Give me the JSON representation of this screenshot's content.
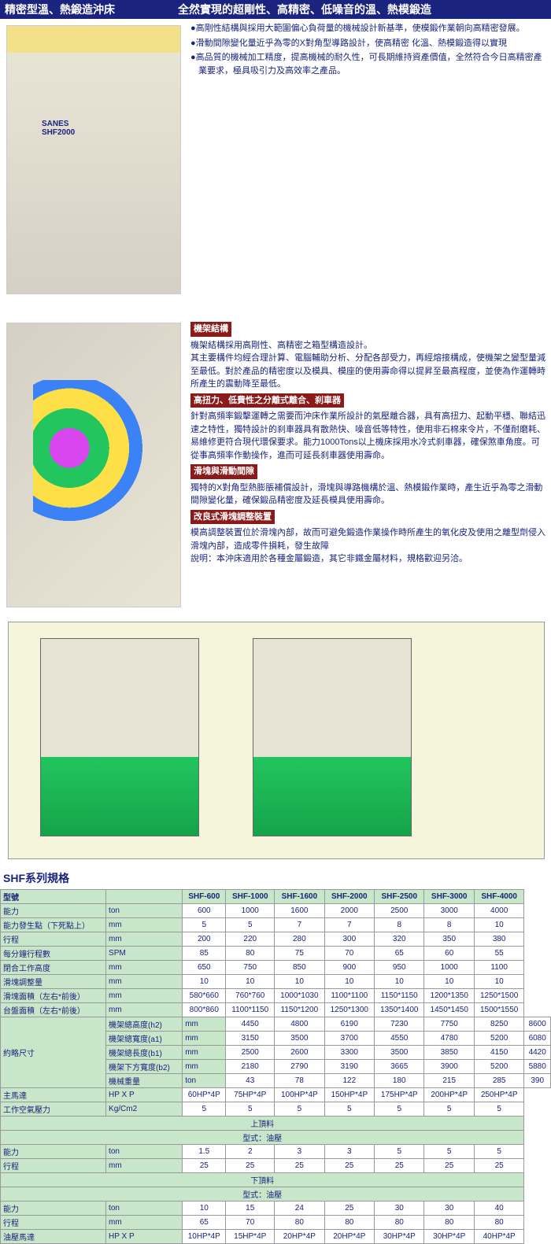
{
  "header": {
    "title1": "精密型溫、熱鍛造沖床",
    "title2": "全然實現的超剛性、高精密、低噪音的溫、熱模鍛造"
  },
  "bullets": [
    "●高剛性結構與採用大範圍偏心負荷量的機械設計新基準，使模鍛作業朝向高精密發展。",
    "●滑動間隙變化量近乎為零的X對角型導路設計，使高精密 化溫、熱模鍛造得以實現",
    "●高品質的機械加工精度，提高機械的耐久性，可長期維持資產價值，全然符合今日高精密產業要求，極具吸引力及高效率之產品。"
  ],
  "sections": [
    {
      "h": "機架結構",
      "t": [
        "機架結構採用高剛性、高精密之箱型構造設計。",
        "其主要構件均經合理計算、電腦輔助分析、分配各部受力，再經熔接構成，使機架之變型量減至最低。對於產品的精密度以及模具、模座的使用壽命得以提昇至最高程度，並使為作運轉時所產生的震動降至最低。"
      ]
    },
    {
      "h": "高扭力、低費性之分離式離合、刹車器",
      "t": [
        "針對高頻率鍛擊運轉之需要而沖床作業所設計的氣壓離合器，具有高扭力、起動平穩、聯結迅速之特性，獨特設計的刹車器具有散熱快、噪音低等特性，使用非石棉來令片，不僅耐磨耗、易維修更符合現代環保要求。能力1000Tons以上機床採用水冷式刹車器，確保煞車角度。可從事高頻率作動操作，進而可延長刹車器使用壽命。"
      ]
    },
    {
      "h": "滑塊與滑動間隙",
      "t": [
        "獨特的X對角型熱膨脹補償設計，滑塊與導路機構於溫、熱模鍛作業時，產生近乎為零之滑動間隙變化量，確保鍛品精密度及延長模具使用壽命。"
      ]
    },
    {
      "h": "改良式滑塊調整裝置",
      "t": [
        "模高調整裝置位於滑塊內部，故而可避免鍛造作業操作時所產生的氧化皮及使用之離型劑侵入滑塊內部，造成零件損耗，發生故障",
        "說明：本沖床適用於各種金屬鍛造，其它非鐵金屬材料，規格歡迎另洽。"
      ]
    }
  ],
  "specTitle": "SHF系列規格",
  "cols": [
    "SHF-600",
    "SHF-1000",
    "SHF-1600",
    "SHF-2000",
    "SHF-2500",
    "SHF-3000",
    "SHF-4000"
  ],
  "rows": [
    {
      "l": "型號",
      "u": "",
      "v": [
        "",
        "",
        "",
        "",
        "",
        "",
        ""
      ]
    },
    {
      "l": "能力",
      "u": "ton",
      "v": [
        "600",
        "1000",
        "1600",
        "2000",
        "2500",
        "3000",
        "4000"
      ]
    },
    {
      "l": "能力發生點（下死點上）",
      "u": "mm",
      "v": [
        "5",
        "5",
        "7",
        "7",
        "8",
        "8",
        "10"
      ]
    },
    {
      "l": "行程",
      "u": "mm",
      "v": [
        "200",
        "220",
        "280",
        "300",
        "320",
        "350",
        "380"
      ]
    },
    {
      "l": "每分鐘行程數",
      "u": "SPM",
      "v": [
        "85",
        "80",
        "75",
        "70",
        "65",
        "60",
        "55"
      ]
    },
    {
      "l": "閉合工作高度",
      "u": "mm",
      "v": [
        "650",
        "750",
        "850",
        "900",
        "950",
        "1000",
        "1100"
      ]
    },
    {
      "l": "滑塊調整量",
      "u": "mm",
      "v": [
        "10",
        "10",
        "10",
        "10",
        "10",
        "10",
        "10"
      ]
    },
    {
      "l": "滑塊面積（左右*前後）",
      "u": "mm",
      "v": [
        "580*660",
        "760*760",
        "1000*1030",
        "1100*1100",
        "1150*1150",
        "1200*1350",
        "1250*1500"
      ]
    },
    {
      "l": "台盤面積（左右*前後）",
      "u": "mm",
      "v": [
        "800*860",
        "1100*1150",
        "1150*1200",
        "1250*1300",
        "1350*1400",
        "1450*1450",
        "1500*1550"
      ]
    }
  ],
  "dims": [
    {
      "l": "機架總高度(h2)",
      "u": "mm",
      "v": [
        "4450",
        "4800",
        "6190",
        "7230",
        "7750",
        "8250",
        "8600"
      ]
    },
    {
      "l": "機架總寬度(a1)",
      "u": "mm",
      "v": [
        "3150",
        "3500",
        "3700",
        "4550",
        "4780",
        "5200",
        "6080"
      ]
    },
    {
      "l": "機架總長度(b1)",
      "u": "mm",
      "v": [
        "2500",
        "2600",
        "3300",
        "3500",
        "3850",
        "4150",
        "4420"
      ]
    },
    {
      "l": "機架下方寬度(b2)",
      "u": "mm",
      "v": [
        "2180",
        "2790",
        "3190",
        "3665",
        "3900",
        "5200",
        "5880"
      ]
    },
    {
      "l": "機械重量",
      "u": "ton",
      "v": [
        "43",
        "78",
        "122",
        "180",
        "215",
        "285",
        "390"
      ]
    }
  ],
  "motor": {
    "l": "主馬達",
    "u": "HP X P",
    "v": [
      "60HP*4P",
      "75HP*4P",
      "100HP*4P",
      "150HP*4P",
      "175HP*4P",
      "200HP*4P",
      "250HP*4P"
    ]
  },
  "air": {
    "l": "工作空氣壓力",
    "u": "Kg/Cm2",
    "v": [
      "5",
      "5",
      "5",
      "5",
      "5",
      "5",
      "5"
    ]
  },
  "upper": {
    "title": "上頂料",
    "type": "型式：油壓",
    "rows": [
      {
        "l": "能力",
        "u": "ton",
        "v": [
          "1.5",
          "2",
          "3",
          "3",
          "5",
          "5",
          "5"
        ]
      },
      {
        "l": "行程",
        "u": "mm",
        "v": [
          "25",
          "25",
          "25",
          "25",
          "25",
          "25",
          "25"
        ]
      }
    ]
  },
  "lower": {
    "title": "下頂料",
    "type": "型式：油壓",
    "rows": [
      {
        "l": "能力",
        "u": "ton",
        "v": [
          "10",
          "15",
          "24",
          "25",
          "30",
          "30",
          "40"
        ]
      },
      {
        "l": "行程",
        "u": "mm",
        "v": [
          "65",
          "70",
          "80",
          "80",
          "80",
          "80",
          "80"
        ]
      },
      {
        "l": "油壓馬達",
        "u": "HP X P",
        "v": [
          "10HP*4P",
          "15HP*4P",
          "20HP*4P",
          "20HP*4P",
          "30HP*4P",
          "30HP*4P",
          "40HP*4P"
        ]
      }
    ]
  }
}
